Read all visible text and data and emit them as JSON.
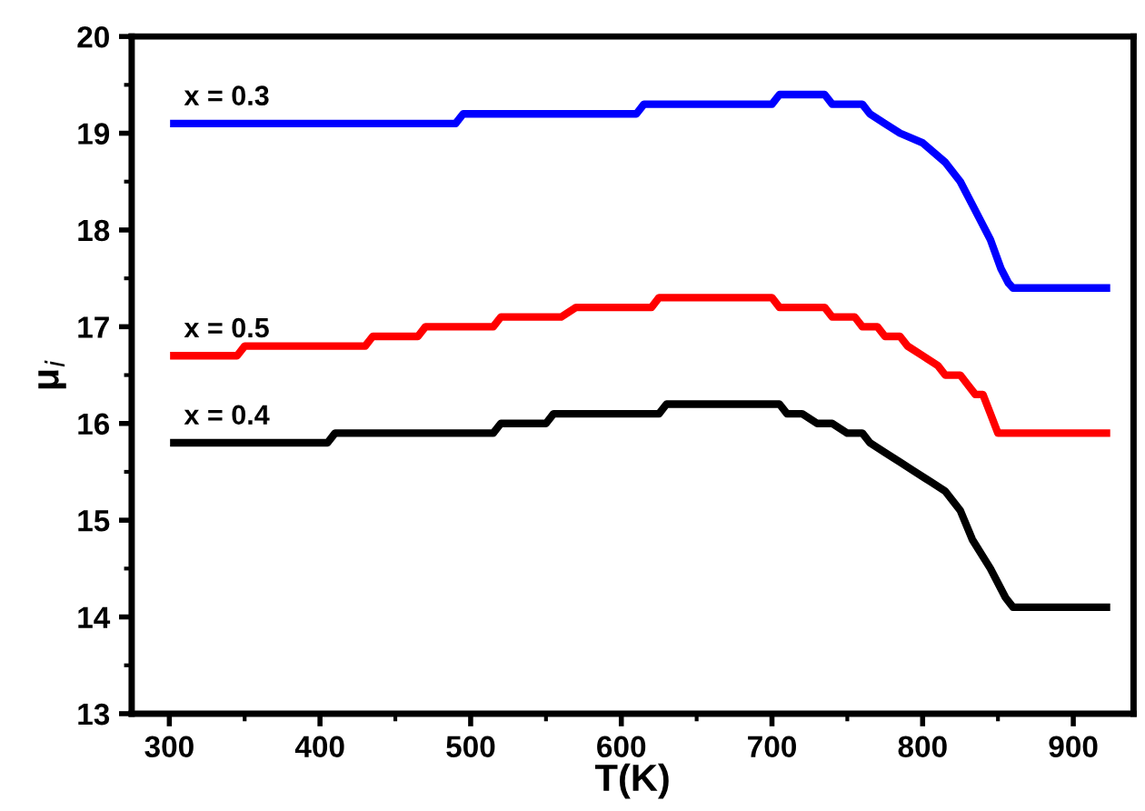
{
  "chart_data": {
    "type": "step",
    "xlabel": "T(K)",
    "ylabel": "μ$_{i}$",
    "xlim": [
      275,
      940
    ],
    "ylim": [
      13,
      20
    ],
    "xticks": [
      300,
      400,
      500,
      600,
      700,
      800,
      900
    ],
    "yticks": [
      13,
      14,
      15,
      16,
      17,
      18,
      19,
      20
    ],
    "grid": false,
    "legend": false,
    "marker": "none",
    "line_style": "solid",
    "series": [
      {
        "name": "x = 0.3",
        "color": "#0000ff",
        "x": [
          303,
          490,
          495,
          610,
          615,
          700,
          705,
          735,
          740,
          760,
          765,
          775,
          785,
          800,
          815,
          825,
          835,
          845,
          852,
          857,
          860,
          922
        ],
        "values": [
          19.1,
          19.1,
          19.2,
          19.2,
          19.3,
          19.3,
          19.4,
          19.4,
          19.3,
          19.3,
          19.2,
          19.1,
          19.0,
          18.9,
          18.7,
          18.5,
          18.2,
          17.9,
          17.6,
          17.45,
          17.4,
          17.4
        ]
      },
      {
        "name": "x = 0.5",
        "color": "#ff0000",
        "x": [
          303,
          345,
          350,
          430,
          435,
          465,
          470,
          515,
          520,
          560,
          570,
          620,
          625,
          700,
          705,
          735,
          740,
          755,
          760,
          770,
          775,
          785,
          790,
          800,
          810,
          815,
          825,
          830,
          835,
          840,
          845,
          850,
          922
        ],
        "values": [
          16.7,
          16.7,
          16.8,
          16.8,
          16.9,
          16.9,
          17.0,
          17.0,
          17.1,
          17.1,
          17.2,
          17.2,
          17.3,
          17.3,
          17.2,
          17.2,
          17.1,
          17.1,
          17.0,
          17.0,
          16.9,
          16.9,
          16.8,
          16.7,
          16.6,
          16.5,
          16.5,
          16.4,
          16.3,
          16.3,
          16.1,
          15.9,
          15.9
        ]
      },
      {
        "name": "x = 0.4",
        "color": "#000000",
        "x": [
          303,
          405,
          410,
          515,
          520,
          550,
          555,
          625,
          630,
          705,
          710,
          720,
          730,
          740,
          750,
          760,
          765,
          775,
          785,
          795,
          805,
          815,
          825,
          833,
          845,
          855,
          860,
          922
        ],
        "values": [
          15.8,
          15.8,
          15.9,
          15.9,
          16.0,
          16.0,
          16.1,
          16.1,
          16.2,
          16.2,
          16.1,
          16.1,
          16.0,
          16.0,
          15.9,
          15.9,
          15.8,
          15.7,
          15.6,
          15.5,
          15.4,
          15.3,
          15.1,
          14.8,
          14.5,
          14.2,
          14.1,
          14.1
        ]
      }
    ]
  }
}
